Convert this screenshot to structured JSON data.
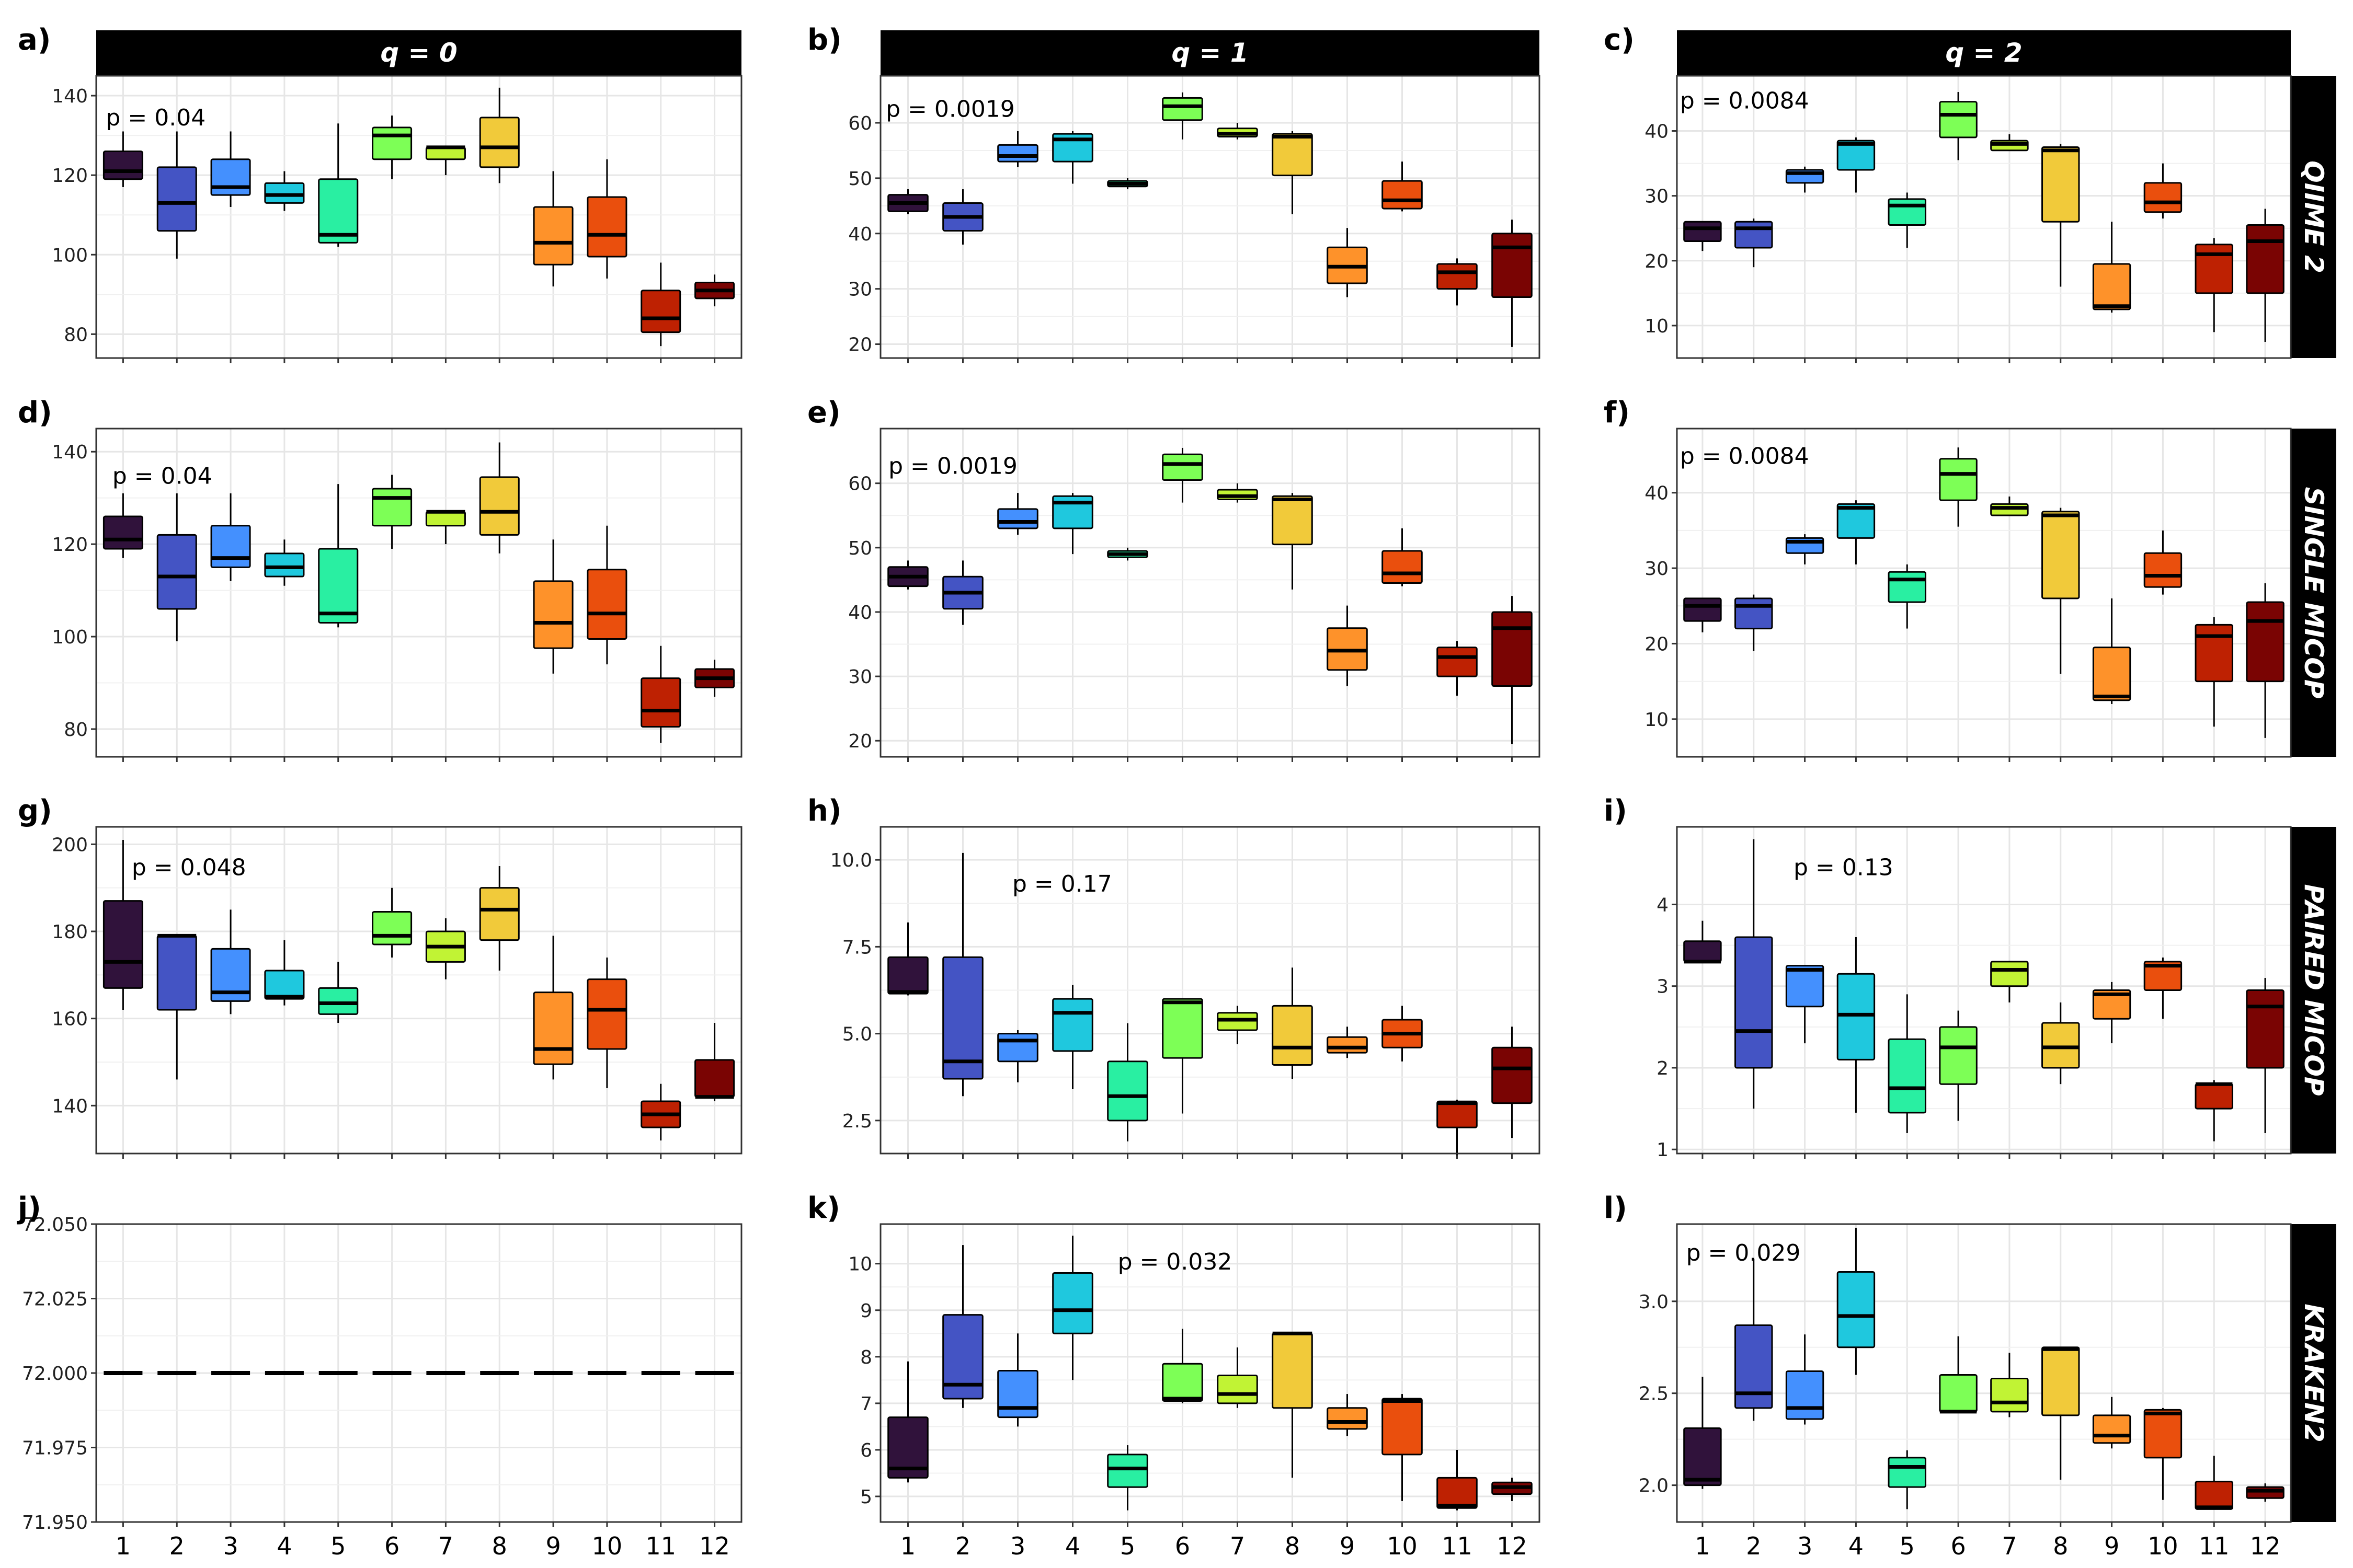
{
  "colors": [
    "#30123b",
    "#4454c4",
    "#4490fe",
    "#1fc8de",
    "#29efa2",
    "#7dff56",
    "#c1f334",
    "#f1ca3a",
    "#fe922a",
    "#ea4f0d",
    "#be2102",
    "#7a0403"
  ],
  "col_titles": [
    "q = 0",
    "q = 1",
    "q = 2"
  ],
  "row_titles": [
    "QIIME 2",
    "SINGLE MICOP",
    "PAIRED MICOP",
    "KRAKEN2"
  ],
  "x_tick_labels": [
    "1",
    "2",
    "3",
    "4",
    "5",
    "6",
    "7",
    "8",
    "9",
    "10",
    "11",
    "12"
  ],
  "chart_data": [
    {
      "type": "box",
      "panel": "a)",
      "p_label": "p = 0.04",
      "ylim": [
        74,
        145
      ],
      "yticks": [
        80,
        100,
        120,
        140
      ],
      "boxes": [
        [
          117,
          119,
          121,
          126,
          131
        ],
        [
          99,
          106,
          113,
          122,
          131
        ],
        [
          112,
          115,
          117,
          124,
          131
        ],
        [
          111,
          113,
          115,
          118,
          121
        ],
        [
          102,
          103,
          105,
          119,
          133
        ],
        [
          119,
          124,
          130,
          132,
          135
        ],
        [
          120,
          124,
          127,
          127,
          127
        ],
        [
          118,
          122,
          127,
          134.5,
          142
        ],
        [
          92,
          97.5,
          103,
          112,
          121
        ],
        [
          94,
          99.5,
          105,
          114.5,
          124
        ],
        [
          77,
          80.5,
          84,
          91,
          98
        ],
        [
          87,
          89,
          91,
          93,
          95
        ]
      ]
    },
    {
      "type": "box",
      "panel": "b)",
      "p_label": "p = 0.0019",
      "ylim": [
        17.5,
        68.5
      ],
      "yticks": [
        20,
        30,
        40,
        50,
        60
      ],
      "boxes": [
        [
          43.5,
          44,
          45.5,
          47,
          48
        ],
        [
          38,
          40.5,
          43,
          45.5,
          48
        ],
        [
          52,
          53,
          54,
          56,
          58.5
        ],
        [
          49,
          53,
          57,
          58,
          58.5
        ],
        [
          48,
          48.5,
          49,
          49.5,
          50
        ],
        [
          57,
          60.5,
          63,
          64.5,
          65.5
        ],
        [
          57,
          57.5,
          58,
          59,
          60
        ],
        [
          43.5,
          50.5,
          57.5,
          58,
          58.5
        ],
        [
          28.5,
          31,
          34,
          37.5,
          41
        ],
        [
          44,
          44.5,
          46,
          49.5,
          53
        ],
        [
          27,
          30,
          33,
          34.5,
          35.5
        ],
        [
          19.5,
          28.5,
          37.5,
          40,
          42.5
        ]
      ]
    },
    {
      "type": "box",
      "panel": "c)",
      "p_label": "p = 0.0084",
      "ylim": [
        5,
        48.5
      ],
      "yticks": [
        10,
        20,
        30,
        40
      ],
      "boxes": [
        [
          21.5,
          23,
          25,
          26,
          26
        ],
        [
          19,
          22,
          25,
          26,
          26.5
        ],
        [
          30.5,
          32,
          33.5,
          34,
          34.5
        ],
        [
          30.5,
          34,
          38,
          38.5,
          39
        ],
        [
          22,
          25.5,
          28.5,
          29.5,
          30.5
        ],
        [
          35.5,
          39,
          42.5,
          44.5,
          46
        ],
        [
          37,
          37,
          38,
          38.5,
          39.5
        ],
        [
          16,
          26,
          37,
          37.5,
          38
        ],
        [
          12,
          12.5,
          13,
          19.5,
          26
        ],
        [
          26.5,
          27.5,
          29,
          32,
          35
        ],
        [
          9,
          15,
          21,
          22.5,
          23.5
        ],
        [
          7.5,
          15,
          23,
          25.5,
          28
        ]
      ]
    },
    {
      "type": "box",
      "panel": "d)",
      "p_label": "p = 0.04",
      "ylim": [
        74,
        145
      ],
      "yticks": [
        80,
        100,
        120,
        140
      ],
      "boxes": [
        [
          117,
          119,
          121,
          126,
          131
        ],
        [
          99,
          106,
          113,
          122,
          131
        ],
        [
          112,
          115,
          117,
          124,
          131
        ],
        [
          111,
          113,
          115,
          118,
          121
        ],
        [
          102,
          103,
          105,
          119,
          133
        ],
        [
          119,
          124,
          130,
          132,
          135
        ],
        [
          120,
          124,
          127,
          127,
          127
        ],
        [
          118,
          122,
          127,
          134.5,
          142
        ],
        [
          92,
          97.5,
          103,
          112,
          121
        ],
        [
          94,
          99.5,
          105,
          114.5,
          124
        ],
        [
          77,
          80.5,
          84,
          91,
          98
        ],
        [
          87,
          89,
          91,
          93,
          95
        ]
      ]
    },
    {
      "type": "box",
      "panel": "e)",
      "p_label": "p = 0.0019",
      "ylim": [
        17.5,
        68.5
      ],
      "yticks": [
        20,
        30,
        40,
        50,
        60
      ],
      "boxes": [
        [
          43.5,
          44,
          45.5,
          47,
          48
        ],
        [
          38,
          40.5,
          43,
          45.5,
          48
        ],
        [
          52,
          53,
          54,
          56,
          58.5
        ],
        [
          49,
          53,
          57,
          58,
          58.5
        ],
        [
          48,
          48.5,
          49,
          49.5,
          50
        ],
        [
          57,
          60.5,
          63,
          64.5,
          65.5
        ],
        [
          57,
          57.5,
          58,
          59,
          60
        ],
        [
          43.5,
          50.5,
          57.5,
          58,
          58.5
        ],
        [
          28.5,
          31,
          34,
          37.5,
          41
        ],
        [
          44,
          44.5,
          46,
          49.5,
          53
        ],
        [
          27,
          30,
          33,
          34.5,
          35.5
        ],
        [
          19.5,
          28.5,
          37.5,
          40,
          42.5
        ]
      ]
    },
    {
      "type": "box",
      "panel": "f)",
      "p_label": "p = 0.0084",
      "ylim": [
        5,
        48.5
      ],
      "yticks": [
        10,
        20,
        30,
        40
      ],
      "boxes": [
        [
          21.5,
          23,
          25,
          26,
          26
        ],
        [
          19,
          22,
          25,
          26,
          26.5
        ],
        [
          30.5,
          32,
          33.5,
          34,
          34.5
        ],
        [
          30.5,
          34,
          38,
          38.5,
          39
        ],
        [
          22,
          25.5,
          28.5,
          29.5,
          30.5
        ],
        [
          35.5,
          39,
          42.5,
          44.5,
          46
        ],
        [
          37,
          37,
          38,
          38.5,
          39.5
        ],
        [
          16,
          26,
          37,
          37.5,
          38
        ],
        [
          12,
          12.5,
          13,
          19.5,
          26
        ],
        [
          26.5,
          27.5,
          29,
          32,
          35
        ],
        [
          9,
          15,
          21,
          22.5,
          23.5
        ],
        [
          7.5,
          15,
          23,
          25.5,
          28
        ]
      ]
    },
    {
      "type": "box",
      "panel": "g)",
      "p_label": "p = 0.048",
      "ylim": [
        129,
        204
      ],
      "yticks": [
        140,
        160,
        180,
        200
      ],
      "boxes": [
        [
          162,
          167,
          173,
          187,
          201
        ],
        [
          146,
          162,
          179,
          179,
          179
        ],
        [
          161,
          164,
          166,
          176,
          185
        ],
        [
          163,
          164.5,
          165,
          171,
          178
        ],
        [
          159,
          161,
          163.5,
          167,
          173
        ],
        [
          174,
          177,
          179,
          184.5,
          190
        ],
        [
          169,
          173,
          176.5,
          180,
          183
        ],
        [
          171,
          178,
          185,
          190,
          195
        ],
        [
          146,
          149.5,
          153,
          166,
          179
        ],
        [
          144,
          153,
          162,
          169,
          174
        ],
        [
          132,
          135,
          138,
          141,
          145
        ],
        [
          141,
          142,
          142,
          150.5,
          159
        ]
      ]
    },
    {
      "type": "box",
      "panel": "h)",
      "p_label": "p = 0.17",
      "ylim": [
        1.55,
        10.95
      ],
      "yticks": [
        2.5,
        5.0,
        7.5,
        10.0
      ],
      "ytick_labels": [
        "2.5",
        "5.0",
        "7.5",
        "10.0"
      ],
      "boxes": [
        [
          6.1,
          6.15,
          6.2,
          7.2,
          8.2
        ],
        [
          3.2,
          3.7,
          4.2,
          7.2,
          10.2
        ],
        [
          3.6,
          4.2,
          4.8,
          5.0,
          5.1
        ],
        [
          3.4,
          4.5,
          5.6,
          6.0,
          6.4
        ],
        [
          1.9,
          2.5,
          3.2,
          4.2,
          5.3
        ],
        [
          2.7,
          4.3,
          5.9,
          6.0,
          6.0
        ],
        [
          4.7,
          5.1,
          5.4,
          5.6,
          5.8
        ],
        [
          3.7,
          4.1,
          4.6,
          5.8,
          6.9
        ],
        [
          4.3,
          4.45,
          4.6,
          4.9,
          5.2
        ],
        [
          4.2,
          4.6,
          5.0,
          5.4,
          5.8
        ],
        [
          1.5,
          2.3,
          3.0,
          3.05,
          3.1
        ],
        [
          2.0,
          3.0,
          4.0,
          4.6,
          5.2
        ]
      ]
    },
    {
      "type": "box",
      "panel": "i)",
      "p_label": "p = 0.13",
      "ylim": [
        0.95,
        4.95
      ],
      "yticks": [
        1,
        2,
        3,
        4
      ],
      "boxes": [
        [
          3.3,
          3.3,
          3.3,
          3.55,
          3.8
        ],
        [
          1.5,
          2.0,
          2.45,
          3.6,
          4.8
        ],
        [
          2.3,
          2.75,
          3.2,
          3.25,
          3.25
        ],
        [
          1.45,
          2.1,
          2.65,
          3.15,
          3.6
        ],
        [
          1.2,
          1.45,
          1.75,
          2.35,
          2.9
        ],
        [
          1.35,
          1.8,
          2.25,
          2.5,
          2.7
        ],
        [
          2.8,
          3.0,
          3.2,
          3.3,
          3.3
        ],
        [
          1.8,
          2.0,
          2.25,
          2.55,
          2.8
        ],
        [
          2.3,
          2.6,
          2.9,
          2.95,
          3.05
        ],
        [
          2.6,
          2.95,
          3.25,
          3.3,
          3.35
        ],
        [
          1.1,
          1.5,
          1.8,
          1.8,
          1.85
        ],
        [
          1.2,
          2.0,
          2.75,
          2.95,
          3.1
        ]
      ]
    },
    {
      "type": "box",
      "panel": "j)",
      "p_label": "",
      "ylim": [
        71.95,
        72.05
      ],
      "yticks": [
        71.95,
        71.975,
        72.0,
        72.025,
        72.05
      ],
      "ytick_labels": [
        "71.950",
        "71.975",
        "72.000",
        "72.025",
        "72.050"
      ],
      "boxes": [
        [
          72,
          72,
          72,
          72,
          72
        ],
        [
          72,
          72,
          72,
          72,
          72
        ],
        [
          72,
          72,
          72,
          72,
          72
        ],
        [
          72,
          72,
          72,
          72,
          72
        ],
        [
          72,
          72,
          72,
          72,
          72
        ],
        [
          72,
          72,
          72,
          72,
          72
        ],
        [
          72,
          72,
          72,
          72,
          72
        ],
        [
          72,
          72,
          72,
          72,
          72
        ],
        [
          72,
          72,
          72,
          72,
          72
        ],
        [
          72,
          72,
          72,
          72,
          72
        ],
        [
          72,
          72,
          72,
          72,
          72
        ],
        [
          72,
          72,
          72,
          72,
          72
        ]
      ]
    },
    {
      "type": "box",
      "panel": "k)",
      "p_label": "p = 0.032",
      "ylim": [
        4.45,
        10.85
      ],
      "yticks": [
        5,
        6,
        7,
        8,
        9,
        10
      ],
      "boxes": [
        [
          5.3,
          5.4,
          5.6,
          6.7,
          7.9
        ],
        [
          6.9,
          7.1,
          7.4,
          8.9,
          10.4
        ],
        [
          6.5,
          6.7,
          6.9,
          7.7,
          8.5
        ],
        [
          7.5,
          8.5,
          9.0,
          9.8,
          10.6
        ],
        [
          4.7,
          5.2,
          5.6,
          5.9,
          6.1
        ],
        [
          7.0,
          7.05,
          7.1,
          7.85,
          8.6
        ],
        [
          6.9,
          7.0,
          7.2,
          7.6,
          8.2
        ],
        [
          5.4,
          6.9,
          8.5,
          8.5,
          8.5
        ],
        [
          6.3,
          6.45,
          6.6,
          6.9,
          7.2
        ],
        [
          4.9,
          5.9,
          7.05,
          7.1,
          7.2
        ],
        [
          4.7,
          4.75,
          4.8,
          5.4,
          6.0
        ],
        [
          4.9,
          5.05,
          5.2,
          5.3,
          5.4
        ]
      ]
    },
    {
      "type": "box",
      "panel": "l)",
      "p_label": "p = 0.029",
      "ylim": [
        1.8,
        3.42
      ],
      "yticks": [
        2.0,
        2.5,
        3.0
      ],
      "ytick_labels": [
        "2.0",
        "2.5",
        "3.0"
      ],
      "boxes": [
        [
          1.98,
          2.0,
          2.03,
          2.31,
          2.59
        ],
        [
          2.35,
          2.42,
          2.5,
          2.87,
          3.23
        ],
        [
          2.33,
          2.36,
          2.42,
          2.62,
          2.82
        ],
        [
          2.6,
          2.75,
          2.92,
          3.16,
          3.4
        ],
        [
          1.87,
          1.99,
          2.1,
          2.15,
          2.19
        ],
        [
          2.4,
          2.4,
          2.4,
          2.6,
          2.81
        ],
        [
          2.37,
          2.4,
          2.45,
          2.58,
          2.72
        ],
        [
          2.03,
          2.38,
          2.74,
          2.75,
          2.75
        ],
        [
          2.2,
          2.23,
          2.27,
          2.38,
          2.48
        ],
        [
          1.92,
          2.15,
          2.39,
          2.41,
          2.42
        ],
        [
          1.87,
          1.87,
          1.88,
          2.02,
          2.16
        ],
        [
          1.91,
          1.93,
          1.97,
          1.99,
          2.01
        ]
      ]
    }
  ]
}
